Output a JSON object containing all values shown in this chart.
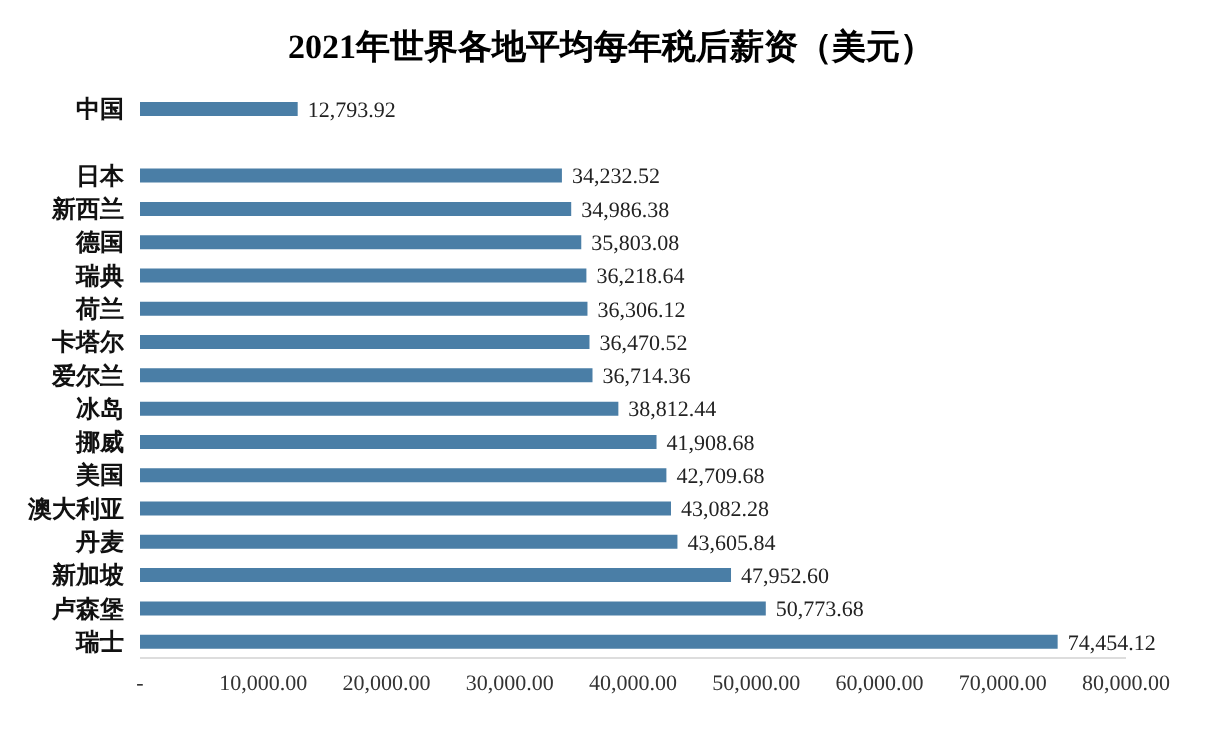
{
  "chart_data": {
    "type": "bar",
    "orientation": "horizontal",
    "title": "2021年世界各地平均每年税后薪资（美元）",
    "categories": [
      "中国",
      null,
      "日本",
      "新西兰",
      "德国",
      "瑞典",
      "荷兰",
      "卡塔尔",
      "爱尔兰",
      "冰岛",
      "挪威",
      "美国",
      "澳大利亚",
      "丹麦",
      "新加坡",
      "卢森堡",
      "瑞士"
    ],
    "values": [
      12793.92,
      null,
      34232.52,
      34986.38,
      35803.08,
      36218.64,
      36306.12,
      36470.52,
      36714.36,
      38812.44,
      41908.68,
      42709.68,
      43082.28,
      43605.84,
      47952.6,
      50773.68,
      74454.12
    ],
    "value_labels": [
      "12,793.92",
      null,
      "34,232.52",
      "34,986.38",
      "35,803.08",
      "36,218.64",
      "36,306.12",
      "36,470.52",
      "36,714.36",
      "38,812.44",
      "41,908.68",
      "42,709.68",
      "43,082.28",
      "43,605.84",
      "47,952.60",
      "50,773.68",
      "74,454.12"
    ],
    "color": "#4a7ea6",
    "grid": false,
    "legend": false,
    "xlim": [
      0,
      80000
    ],
    "xticks": [
      {
        "value": 0,
        "label": "-"
      },
      {
        "value": 10000,
        "label": "10,000.00"
      },
      {
        "value": 20000,
        "label": "20,000.00"
      },
      {
        "value": 30000,
        "label": "30,000.00"
      },
      {
        "value": 40000,
        "label": "40,000.00"
      },
      {
        "value": 50000,
        "label": "50,000.00"
      },
      {
        "value": 60000,
        "label": "60,000.00"
      },
      {
        "value": 70000,
        "label": "70,000.00"
      },
      {
        "value": 80000,
        "label": "80,000.00"
      }
    ]
  }
}
